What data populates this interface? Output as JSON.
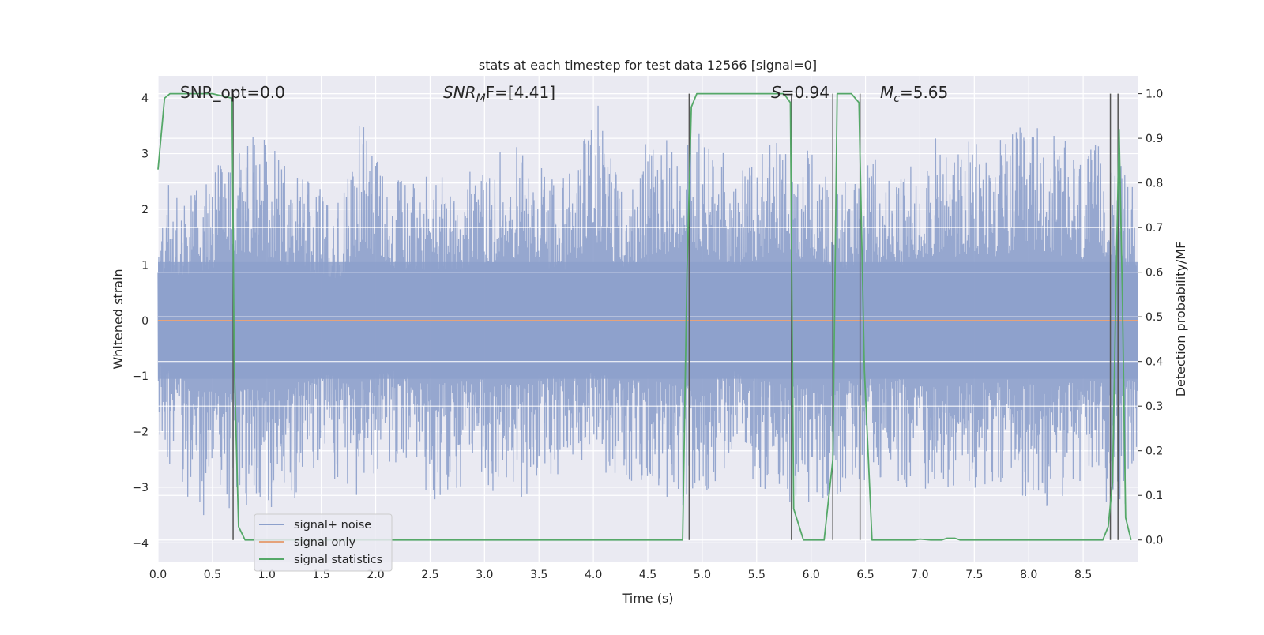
{
  "chart_data": {
    "type": "line",
    "title": "stats at each timestep for test data 12566 [signal=0]",
    "xlabel": "Time (s)",
    "ylabel": "Whitened strain",
    "ylabel_right": "Detection probability/MF",
    "xlim": [
      0.0,
      9.0
    ],
    "ylim": [
      -4.35,
      4.4
    ],
    "ylim_right": [
      -0.05,
      1.04
    ],
    "x_ticks": [
      "0.0",
      "0.5",
      "1.0",
      "1.5",
      "2.0",
      "2.5",
      "3.0",
      "3.5",
      "4.0",
      "4.5",
      "5.0",
      "5.5",
      "6.0",
      "6.5",
      "7.0",
      "7.5",
      "8.0",
      "8.5"
    ],
    "y_ticks": [
      "4",
      "3",
      "2",
      "1",
      "0",
      "−1",
      "−2",
      "−3",
      "−4"
    ],
    "y_right_ticks": [
      "1.0",
      "0.9",
      "0.8",
      "0.7",
      "0.6",
      "0.5",
      "0.4",
      "0.3",
      "0.2",
      "0.1",
      "0.0"
    ],
    "annotations": {
      "snr_opt": "SNR_opt=0.0",
      "snr_mf_main": "SNR",
      "snr_mf_sub": "M",
      "snr_mf_rest": "F=[4.41]",
      "s_main": "S",
      "s_rest": "=0.94",
      "mc_main": "M",
      "mc_sub": "c",
      "mc_rest": "=5.65"
    },
    "legend_position": "lower-left",
    "grid": true,
    "background": "#eaeaf2",
    "series": [
      {
        "name": "signal+ noise",
        "color": "#8da0cb",
        "axis": "left",
        "envelope_peaks_positive": [
          [
            0.01,
            2.1
          ],
          [
            0.1,
            2.5
          ],
          [
            0.22,
            2.3
          ],
          [
            0.4,
            2.4
          ],
          [
            0.72,
            3.3
          ],
          [
            0.98,
            3.3
          ],
          [
            1.2,
            2.8
          ],
          [
            1.67,
            2.1
          ],
          [
            1.86,
            3.6
          ],
          [
            2.2,
            2.6
          ],
          [
            2.6,
            2.6
          ],
          [
            2.85,
            2.7
          ],
          [
            3.1,
            3.0
          ],
          [
            3.28,
            3.2
          ],
          [
            3.55,
            2.7
          ],
          [
            3.75,
            2.6
          ],
          [
            4.05,
            4.0
          ],
          [
            4.25,
            2.4
          ],
          [
            4.45,
            3.2
          ],
          [
            4.65,
            3.4
          ],
          [
            4.82,
            3.7
          ],
          [
            5.1,
            3.2
          ],
          [
            5.35,
            2.8
          ],
          [
            5.55,
            3.2
          ],
          [
            5.78,
            3.3
          ],
          [
            6.05,
            3.0
          ],
          [
            6.3,
            2.6
          ],
          [
            6.55,
            3.0
          ],
          [
            6.8,
            2.5
          ],
          [
            6.95,
            3.1
          ],
          [
            7.08,
            3.3
          ],
          [
            7.35,
            3.2
          ],
          [
            7.7,
            3.3
          ],
          [
            8.05,
            3.6
          ],
          [
            8.3,
            3.3
          ],
          [
            8.5,
            3.0
          ],
          [
            8.78,
            3.4
          ],
          [
            9.0,
            2.2
          ]
        ],
        "envelope_peaks_negative": [
          [
            0.01,
            -2.3
          ],
          [
            0.4,
            -3.6
          ],
          [
            0.67,
            -3.7
          ],
          [
            0.98,
            -3.3
          ],
          [
            1.17,
            -3.5
          ],
          [
            1.45,
            -2.6
          ],
          [
            1.82,
            -3.2
          ],
          [
            2.1,
            -2.5
          ],
          [
            2.55,
            -3.3
          ],
          [
            2.85,
            -2.9
          ],
          [
            3.35,
            -3.3
          ],
          [
            3.6,
            -2.9
          ],
          [
            3.9,
            -2.6
          ],
          [
            4.3,
            -3.0
          ],
          [
            4.65,
            -3.2
          ],
          [
            4.85,
            -3.4
          ],
          [
            5.3,
            -2.6
          ],
          [
            5.55,
            -3.1
          ],
          [
            5.85,
            -3.3
          ],
          [
            6.15,
            -3.3
          ],
          [
            6.5,
            -3.0
          ],
          [
            6.75,
            -2.9
          ],
          [
            7.1,
            -3.2
          ],
          [
            7.4,
            -3.2
          ],
          [
            7.8,
            -3.0
          ],
          [
            8.15,
            -3.4
          ],
          [
            8.6,
            -3.0
          ],
          [
            8.84,
            -3.7
          ],
          [
            9.0,
            -2.3
          ]
        ]
      },
      {
        "name": "signal only",
        "color": "#e5a27a",
        "axis": "left",
        "points": [
          [
            0.0,
            0.0
          ],
          [
            9.0,
            0.0
          ]
        ]
      },
      {
        "name": "signal statistics",
        "color": "#55a868",
        "axis": "right",
        "points": [
          [
            0.0,
            0.83
          ],
          [
            0.06,
            0.99
          ],
          [
            0.11,
            1.0
          ],
          [
            0.5,
            1.0
          ],
          [
            0.68,
            0.99
          ],
          [
            0.7,
            0.4
          ],
          [
            0.74,
            0.03
          ],
          [
            0.8,
            0.0
          ],
          [
            4.82,
            0.0
          ],
          [
            4.86,
            0.6
          ],
          [
            4.9,
            0.97
          ],
          [
            4.95,
            1.0
          ],
          [
            5.75,
            1.0
          ],
          [
            5.81,
            0.98
          ],
          [
            5.84,
            0.07
          ],
          [
            5.93,
            0.0
          ],
          [
            6.12,
            0.0
          ],
          [
            6.2,
            0.18
          ],
          [
            6.24,
            1.0
          ],
          [
            6.37,
            1.0
          ],
          [
            6.44,
            0.98
          ],
          [
            6.49,
            0.38
          ],
          [
            6.56,
            0.0
          ],
          [
            6.95,
            0.0
          ],
          [
            7.0,
            0.002
          ],
          [
            7.1,
            0.0
          ],
          [
            7.2,
            0.0
          ],
          [
            7.25,
            0.004
          ],
          [
            7.32,
            0.004
          ],
          [
            7.37,
            0.0
          ],
          [
            8.68,
            0.0
          ],
          [
            8.73,
            0.03
          ],
          [
            8.77,
            0.13
          ],
          [
            8.8,
            0.55
          ],
          [
            8.83,
            0.92
          ],
          [
            8.86,
            0.55
          ],
          [
            8.89,
            0.05
          ],
          [
            8.94,
            0.0
          ]
        ]
      }
    ],
    "vertical_markers_x": [
      0.69,
      4.88,
      5.82,
      6.2,
      6.45,
      8.75,
      8.82
    ]
  }
}
